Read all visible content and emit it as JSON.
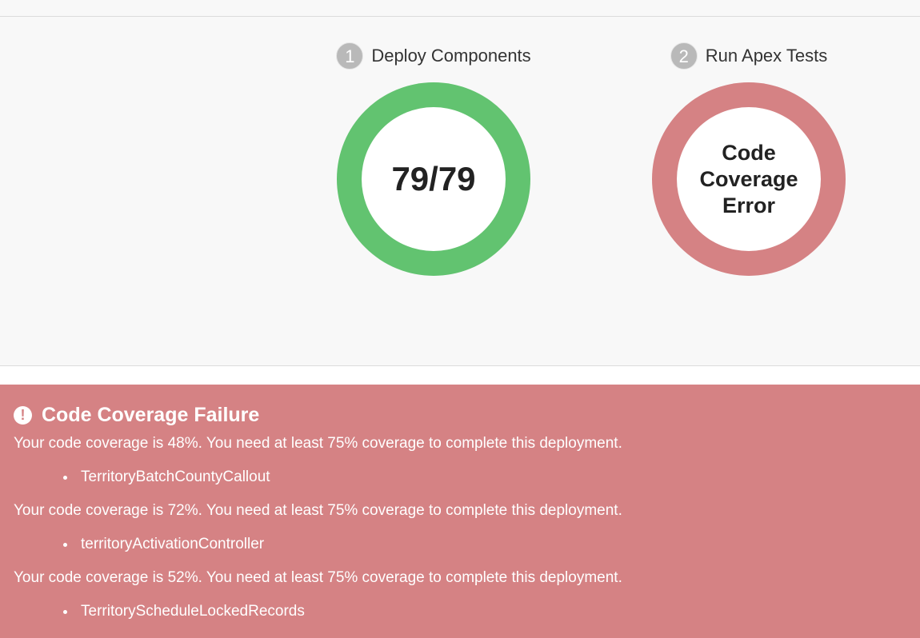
{
  "steps": [
    {
      "number": "1",
      "label": "Deploy Components",
      "ring_text": "79/79",
      "ring_color": "#62c370",
      "status": "success"
    },
    {
      "number": "2",
      "label": "Run Apex Tests",
      "ring_text": "Code Coverage Error",
      "ring_color": "#d58284",
      "status": "error"
    }
  ],
  "alert": {
    "icon": "exclamation-circle-icon",
    "title": "Code Coverage Failure",
    "background": "#d58284",
    "entries": [
      {
        "message": "Your code coverage is 48%. You need at least 75% coverage to complete this deployment.",
        "classes": [
          "TerritoryBatchCountyCallout"
        ]
      },
      {
        "message": "Your code coverage is 72%. You need at least 75% coverage to complete this deployment.",
        "classes": [
          "territoryActivationController"
        ]
      },
      {
        "message": "Your code coverage is 52%. You need at least 75% coverage to complete this deployment.",
        "classes": [
          "TerritoryScheduleLockedRecords"
        ]
      }
    ]
  }
}
